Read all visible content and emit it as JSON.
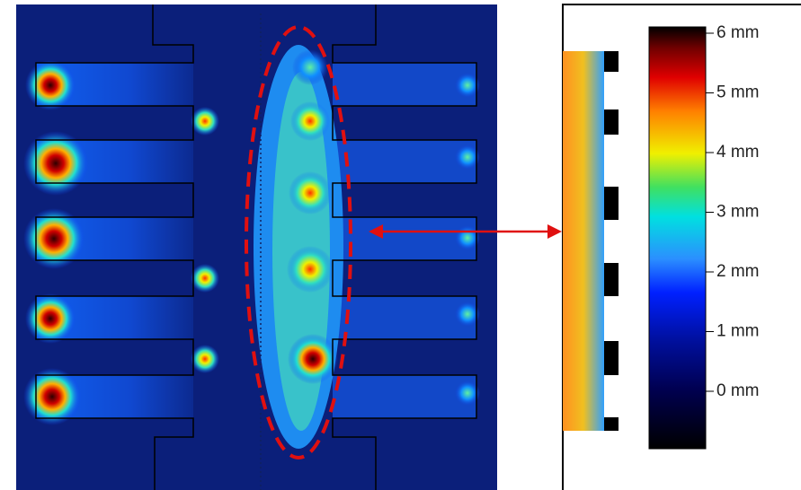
{
  "colorbar": {
    "labels": [
      "6 mm",
      "5 mm",
      "4 mm",
      "3 mm",
      "2 mm",
      "1 mm",
      "0 mm"
    ]
  }
}
